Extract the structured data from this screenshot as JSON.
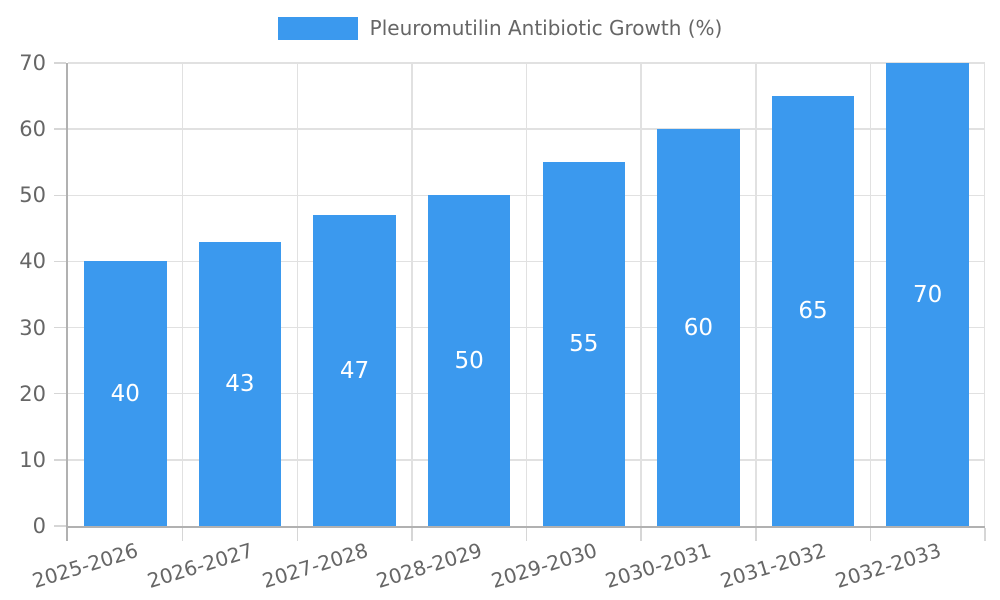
{
  "chart_data": {
    "type": "bar",
    "title": "Pleuromutilin Antibiotic Growth (%)",
    "legend_position": "top",
    "categories": [
      "2025-2026",
      "2026-2027",
      "2027-2028",
      "2028-2029",
      "2029-2030",
      "2030-2031",
      "2031-2032",
      "2032-2033"
    ],
    "series": [
      {
        "name": "Pleuromutilin Antibiotic Growth (%)",
        "values": [
          40,
          43,
          47,
          50,
          55,
          60,
          65,
          70
        ]
      }
    ],
    "value_labels": "inside-center",
    "xlabel": "",
    "ylabel": "",
    "ylim": [
      0,
      70
    ],
    "yticks": [
      0,
      10,
      20,
      30,
      40,
      50,
      60,
      70
    ],
    "grid": true,
    "colors": {
      "bar": "#3b99ee",
      "value_label": "#ffffff",
      "axis_text": "#666666",
      "gridline": "#e1e1e1",
      "tick": "#d6d6d6",
      "axis_line": "#b1b1b1",
      "background": "#ffffff"
    }
  }
}
